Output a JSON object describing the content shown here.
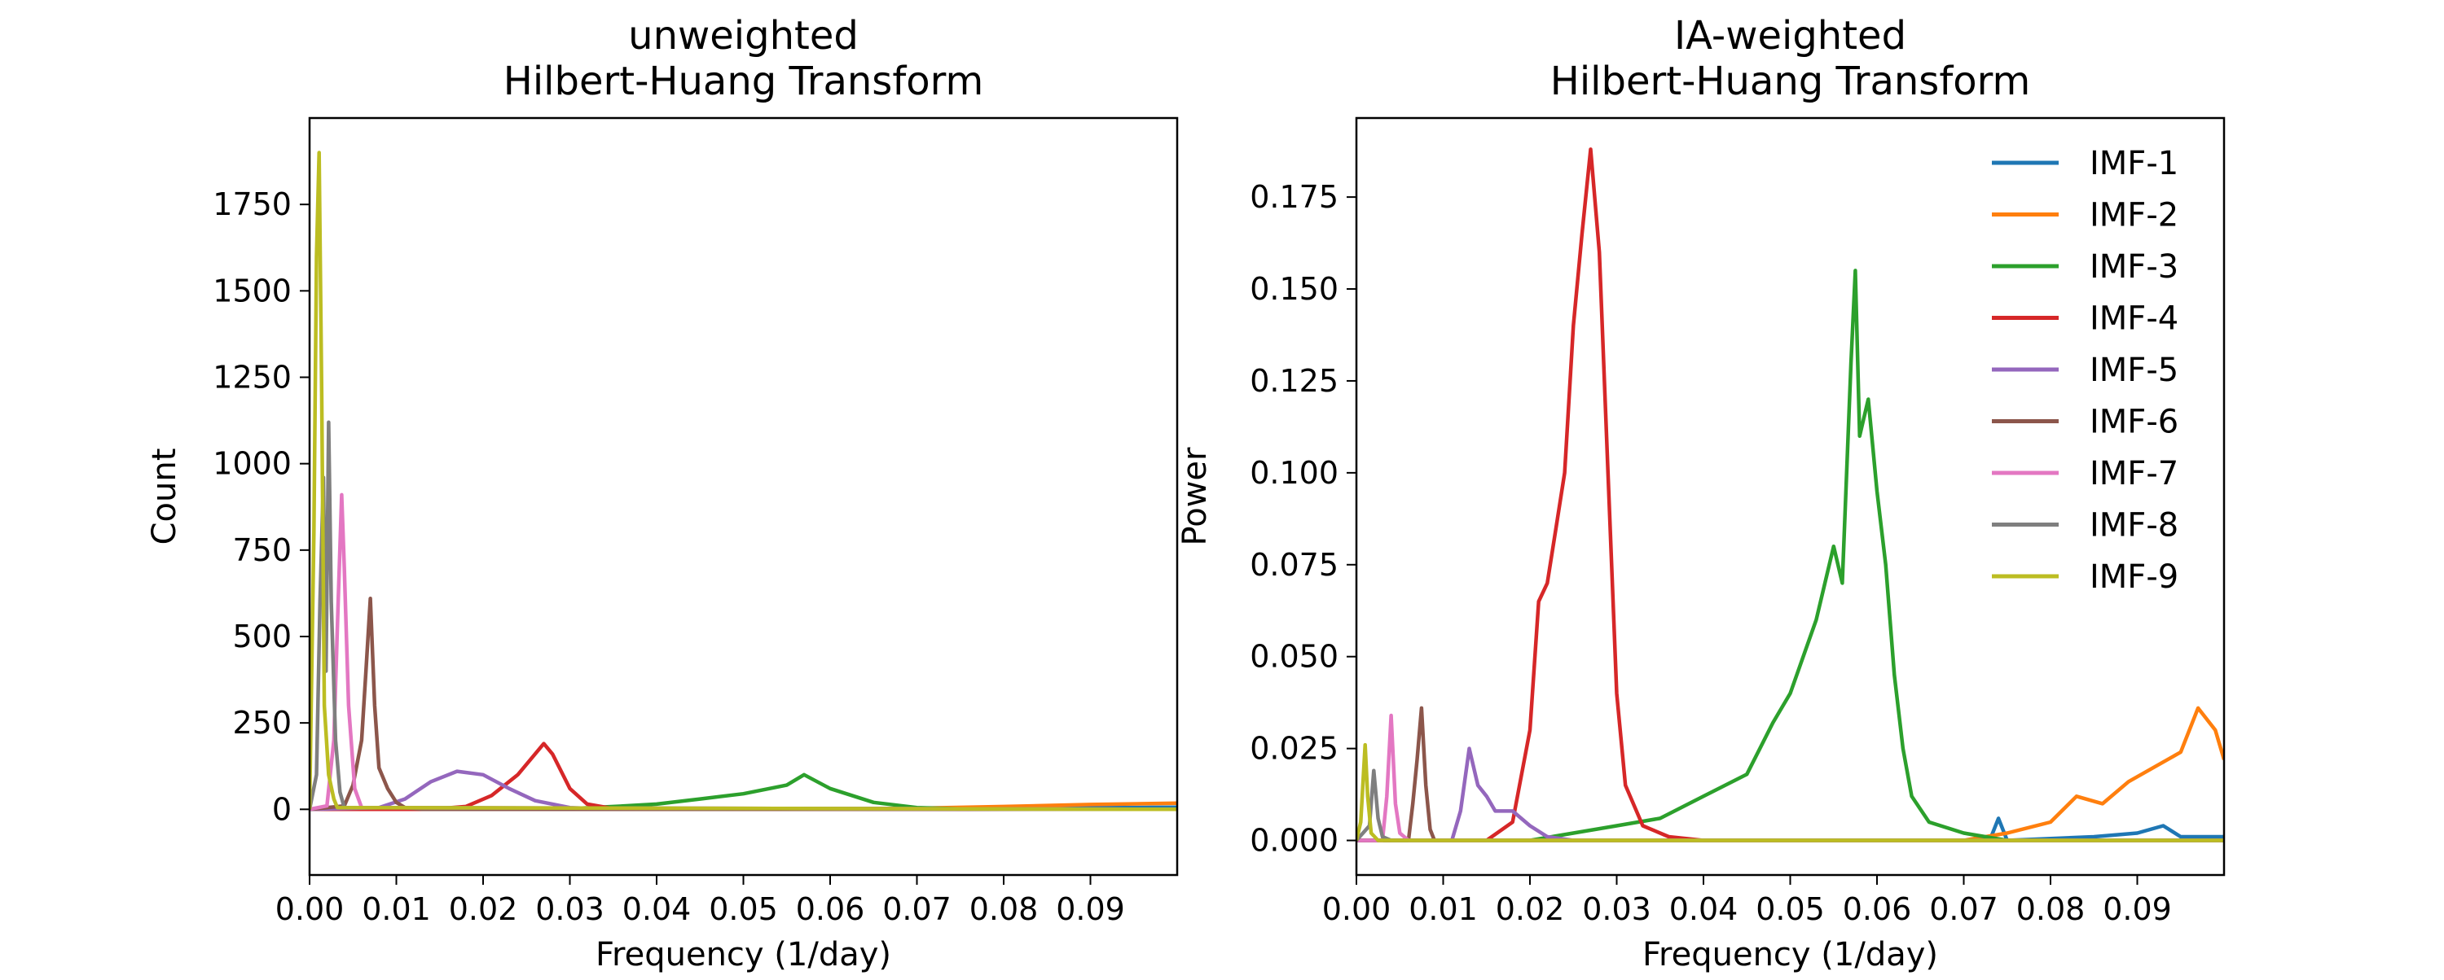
{
  "chart_data": [
    {
      "type": "line",
      "title": [
        "unweighted",
        "Hilbert-Huang Transform"
      ],
      "xlabel": "Frequency (1/day)",
      "ylabel": "Count",
      "xlim": [
        0.0,
        0.1
      ],
      "ylim": [
        -190,
        2000
      ],
      "xticks": [
        0.0,
        0.01,
        0.02,
        0.03,
        0.04,
        0.05,
        0.06,
        0.07,
        0.08,
        0.09
      ],
      "xtick_labels": [
        "0.00",
        "0.01",
        "0.02",
        "0.03",
        "0.04",
        "0.05",
        "0.06",
        "0.07",
        "0.08",
        "0.09"
      ],
      "yticks": [
        0,
        250,
        500,
        750,
        1000,
        1250,
        1500,
        1750
      ],
      "ytick_labels": [
        "0",
        "250",
        "500",
        "750",
        "1000",
        "1250",
        "1500",
        "1750"
      ],
      "grid": false,
      "legend": null,
      "series": [
        {
          "name": "IMF-1",
          "color": "#1f77b4",
          "points": [
            [
              0.0,
              0
            ],
            [
              0.05,
              1
            ],
            [
              0.08,
              3
            ],
            [
              0.1,
              6
            ]
          ]
        },
        {
          "name": "IMF-2",
          "color": "#ff7f0e",
          "points": [
            [
              0.0,
              0
            ],
            [
              0.06,
              0
            ],
            [
              0.07,
              3
            ],
            [
              0.08,
              8
            ],
            [
              0.09,
              14
            ],
            [
              0.1,
              18
            ]
          ]
        },
        {
          "name": "IMF-3",
          "color": "#2ca02c",
          "points": [
            [
              0.0,
              0
            ],
            [
              0.03,
              2
            ],
            [
              0.035,
              8
            ],
            [
              0.04,
              15
            ],
            [
              0.045,
              30
            ],
            [
              0.05,
              45
            ],
            [
              0.055,
              70
            ],
            [
              0.057,
              100
            ],
            [
              0.06,
              60
            ],
            [
              0.065,
              20
            ],
            [
              0.07,
              5
            ],
            [
              0.075,
              1
            ],
            [
              0.1,
              0
            ]
          ]
        },
        {
          "name": "IMF-4",
          "color": "#d62728",
          "points": [
            [
              0.0,
              0
            ],
            [
              0.014,
              0
            ],
            [
              0.018,
              8
            ],
            [
              0.021,
              40
            ],
            [
              0.024,
              100
            ],
            [
              0.027,
              190
            ],
            [
              0.028,
              160
            ],
            [
              0.03,
              60
            ],
            [
              0.032,
              15
            ],
            [
              0.035,
              2
            ],
            [
              0.1,
              0
            ]
          ]
        },
        {
          "name": "IMF-5",
          "color": "#9467bd",
          "points": [
            [
              0.0,
              0
            ],
            [
              0.008,
              5
            ],
            [
              0.011,
              30
            ],
            [
              0.014,
              80
            ],
            [
              0.017,
              110
            ],
            [
              0.02,
              100
            ],
            [
              0.023,
              60
            ],
            [
              0.026,
              25
            ],
            [
              0.03,
              5
            ],
            [
              0.035,
              0
            ],
            [
              0.1,
              0
            ]
          ]
        },
        {
          "name": "IMF-6",
          "color": "#8c564b",
          "points": [
            [
              0.0,
              0
            ],
            [
              0.004,
              10
            ],
            [
              0.005,
              70
            ],
            [
              0.006,
              200
            ],
            [
              0.0065,
              400
            ],
            [
              0.007,
              610
            ],
            [
              0.0075,
              300
            ],
            [
              0.008,
              120
            ],
            [
              0.009,
              60
            ],
            [
              0.01,
              20
            ],
            [
              0.011,
              5
            ],
            [
              0.013,
              0
            ],
            [
              0.1,
              0
            ]
          ]
        },
        {
          "name": "IMF-7",
          "color": "#e377c2",
          "points": [
            [
              0.0,
              0
            ],
            [
              0.002,
              10
            ],
            [
              0.0028,
              200
            ],
            [
              0.0033,
              600
            ],
            [
              0.0037,
              910
            ],
            [
              0.004,
              700
            ],
            [
              0.0045,
              300
            ],
            [
              0.0052,
              60
            ],
            [
              0.006,
              5
            ],
            [
              0.1,
              0
            ]
          ]
        },
        {
          "name": "IMF-8",
          "color": "#7f7f7f",
          "points": [
            [
              0.0,
              0
            ],
            [
              0.0008,
              100
            ],
            [
              0.0012,
              600
            ],
            [
              0.0016,
              960
            ],
            [
              0.0019,
              400
            ],
            [
              0.0022,
              1120
            ],
            [
              0.0025,
              600
            ],
            [
              0.003,
              200
            ],
            [
              0.0035,
              50
            ],
            [
              0.004,
              5
            ],
            [
              0.1,
              0
            ]
          ]
        },
        {
          "name": "IMF-9",
          "color": "#bcbd22",
          "points": [
            [
              0.0,
              0
            ],
            [
              0.0005,
              800
            ],
            [
              0.0008,
              1600
            ],
            [
              0.0011,
              1900
            ],
            [
              0.0014,
              1200
            ],
            [
              0.0017,
              300
            ],
            [
              0.0022,
              100
            ],
            [
              0.0028,
              30
            ],
            [
              0.0032,
              5
            ],
            [
              0.1,
              0
            ]
          ]
        }
      ]
    },
    {
      "type": "line",
      "title": [
        "IA-weighted",
        "Hilbert-Huang Transform"
      ],
      "xlabel": "Frequency (1/day)",
      "ylabel": "Power",
      "xlim": [
        0.0,
        0.1
      ],
      "ylim": [
        -0.0094,
        0.1965
      ],
      "xticks": [
        0.0,
        0.01,
        0.02,
        0.03,
        0.04,
        0.05,
        0.06,
        0.07,
        0.08,
        0.09
      ],
      "xtick_labels": [
        "0.00",
        "0.01",
        "0.02",
        "0.03",
        "0.04",
        "0.05",
        "0.06",
        "0.07",
        "0.08",
        "0.09"
      ],
      "yticks": [
        0.0,
        0.025,
        0.05,
        0.075,
        0.1,
        0.125,
        0.15,
        0.175
      ],
      "ytick_labels": [
        "0.000",
        "0.025",
        "0.050",
        "0.075",
        "0.100",
        "0.125",
        "0.150",
        "0.175"
      ],
      "grid": false,
      "legend": "upper right",
      "series": [
        {
          "name": "IMF-1",
          "color": "#1f77b4",
          "points": [
            [
              0.0,
              0
            ],
            [
              0.073,
              0
            ],
            [
              0.074,
              0.006
            ],
            [
              0.075,
              0
            ],
            [
              0.085,
              0.001
            ],
            [
              0.09,
              0.002
            ],
            [
              0.093,
              0.004
            ],
            [
              0.095,
              0.001
            ],
            [
              0.1,
              0.001
            ]
          ]
        },
        {
          "name": "IMF-2",
          "color": "#ff7f0e",
          "points": [
            [
              0.0,
              0
            ],
            [
              0.07,
              0
            ],
            [
              0.075,
              0.002
            ],
            [
              0.08,
              0.005
            ],
            [
              0.083,
              0.012
            ],
            [
              0.086,
              0.01
            ],
            [
              0.089,
              0.016
            ],
            [
              0.092,
              0.02
            ],
            [
              0.095,
              0.024
            ],
            [
              0.097,
              0.036
            ],
            [
              0.099,
              0.03
            ],
            [
              0.1,
              0.022
            ]
          ]
        },
        {
          "name": "IMF-3",
          "color": "#2ca02c",
          "points": [
            [
              0.0,
              0
            ],
            [
              0.02,
              0
            ],
            [
              0.025,
              0.002
            ],
            [
              0.03,
              0.004
            ],
            [
              0.035,
              0.006
            ],
            [
              0.04,
              0.012
            ],
            [
              0.045,
              0.018
            ],
            [
              0.048,
              0.032
            ],
            [
              0.05,
              0.04
            ],
            [
              0.053,
              0.06
            ],
            [
              0.055,
              0.08
            ],
            [
              0.056,
              0.07
            ],
            [
              0.057,
              0.13
            ],
            [
              0.0575,
              0.155
            ],
            [
              0.058,
              0.11
            ],
            [
              0.059,
              0.12
            ],
            [
              0.06,
              0.095
            ],
            [
              0.061,
              0.075
            ],
            [
              0.062,
              0.045
            ],
            [
              0.063,
              0.025
            ],
            [
              0.064,
              0.012
            ],
            [
              0.066,
              0.005
            ],
            [
              0.07,
              0.002
            ],
            [
              0.075,
              0
            ],
            [
              0.1,
              0
            ]
          ]
        },
        {
          "name": "IMF-4",
          "color": "#d62728",
          "points": [
            [
              0.0,
              0
            ],
            [
              0.015,
              0
            ],
            [
              0.018,
              0.005
            ],
            [
              0.02,
              0.03
            ],
            [
              0.021,
              0.065
            ],
            [
              0.022,
              0.07
            ],
            [
              0.023,
              0.085
            ],
            [
              0.024,
              0.1
            ],
            [
              0.025,
              0.14
            ],
            [
              0.026,
              0.165
            ],
            [
              0.027,
              0.188
            ],
            [
              0.028,
              0.16
            ],
            [
              0.029,
              0.1
            ],
            [
              0.03,
              0.04
            ],
            [
              0.031,
              0.015
            ],
            [
              0.033,
              0.004
            ],
            [
              0.036,
              0.001
            ],
            [
              0.04,
              0
            ],
            [
              0.1,
              0
            ]
          ]
        },
        {
          "name": "IMF-5",
          "color": "#9467bd",
          "points": [
            [
              0.0,
              0
            ],
            [
              0.011,
              0
            ],
            [
              0.012,
              0.008
            ],
            [
              0.013,
              0.025
            ],
            [
              0.014,
              0.015
            ],
            [
              0.015,
              0.012
            ],
            [
              0.016,
              0.008
            ],
            [
              0.018,
              0.008
            ],
            [
              0.02,
              0.004
            ],
            [
              0.022,
              0.001
            ],
            [
              0.025,
              0
            ],
            [
              0.1,
              0
            ]
          ]
        },
        {
          "name": "IMF-6",
          "color": "#8c564b",
          "points": [
            [
              0.0,
              0
            ],
            [
              0.006,
              0
            ],
            [
              0.0065,
              0.01
            ],
            [
              0.007,
              0.022
            ],
            [
              0.0075,
              0.036
            ],
            [
              0.008,
              0.015
            ],
            [
              0.0085,
              0.003
            ],
            [
              0.009,
              0
            ],
            [
              0.1,
              0
            ]
          ]
        },
        {
          "name": "IMF-7",
          "color": "#e377c2",
          "points": [
            [
              0.0,
              0
            ],
            [
              0.003,
              0
            ],
            [
              0.0035,
              0.012
            ],
            [
              0.004,
              0.034
            ],
            [
              0.0045,
              0.01
            ],
            [
              0.005,
              0.002
            ],
            [
              0.006,
              0
            ],
            [
              0.1,
              0
            ]
          ]
        },
        {
          "name": "IMF-8",
          "color": "#7f7f7f",
          "points": [
            [
              0.0,
              0
            ],
            [
              0.0015,
              0.004
            ],
            [
              0.002,
              0.019
            ],
            [
              0.0025,
              0.006
            ],
            [
              0.003,
              0.001
            ],
            [
              0.004,
              0
            ],
            [
              0.1,
              0
            ]
          ]
        },
        {
          "name": "IMF-9",
          "color": "#bcbd22",
          "points": [
            [
              0.0,
              0
            ],
            [
              0.0005,
              0.005
            ],
            [
              0.001,
              0.026
            ],
            [
              0.0013,
              0.012
            ],
            [
              0.0017,
              0.002
            ],
            [
              0.0025,
              0
            ],
            [
              0.1,
              0
            ]
          ]
        }
      ]
    }
  ]
}
